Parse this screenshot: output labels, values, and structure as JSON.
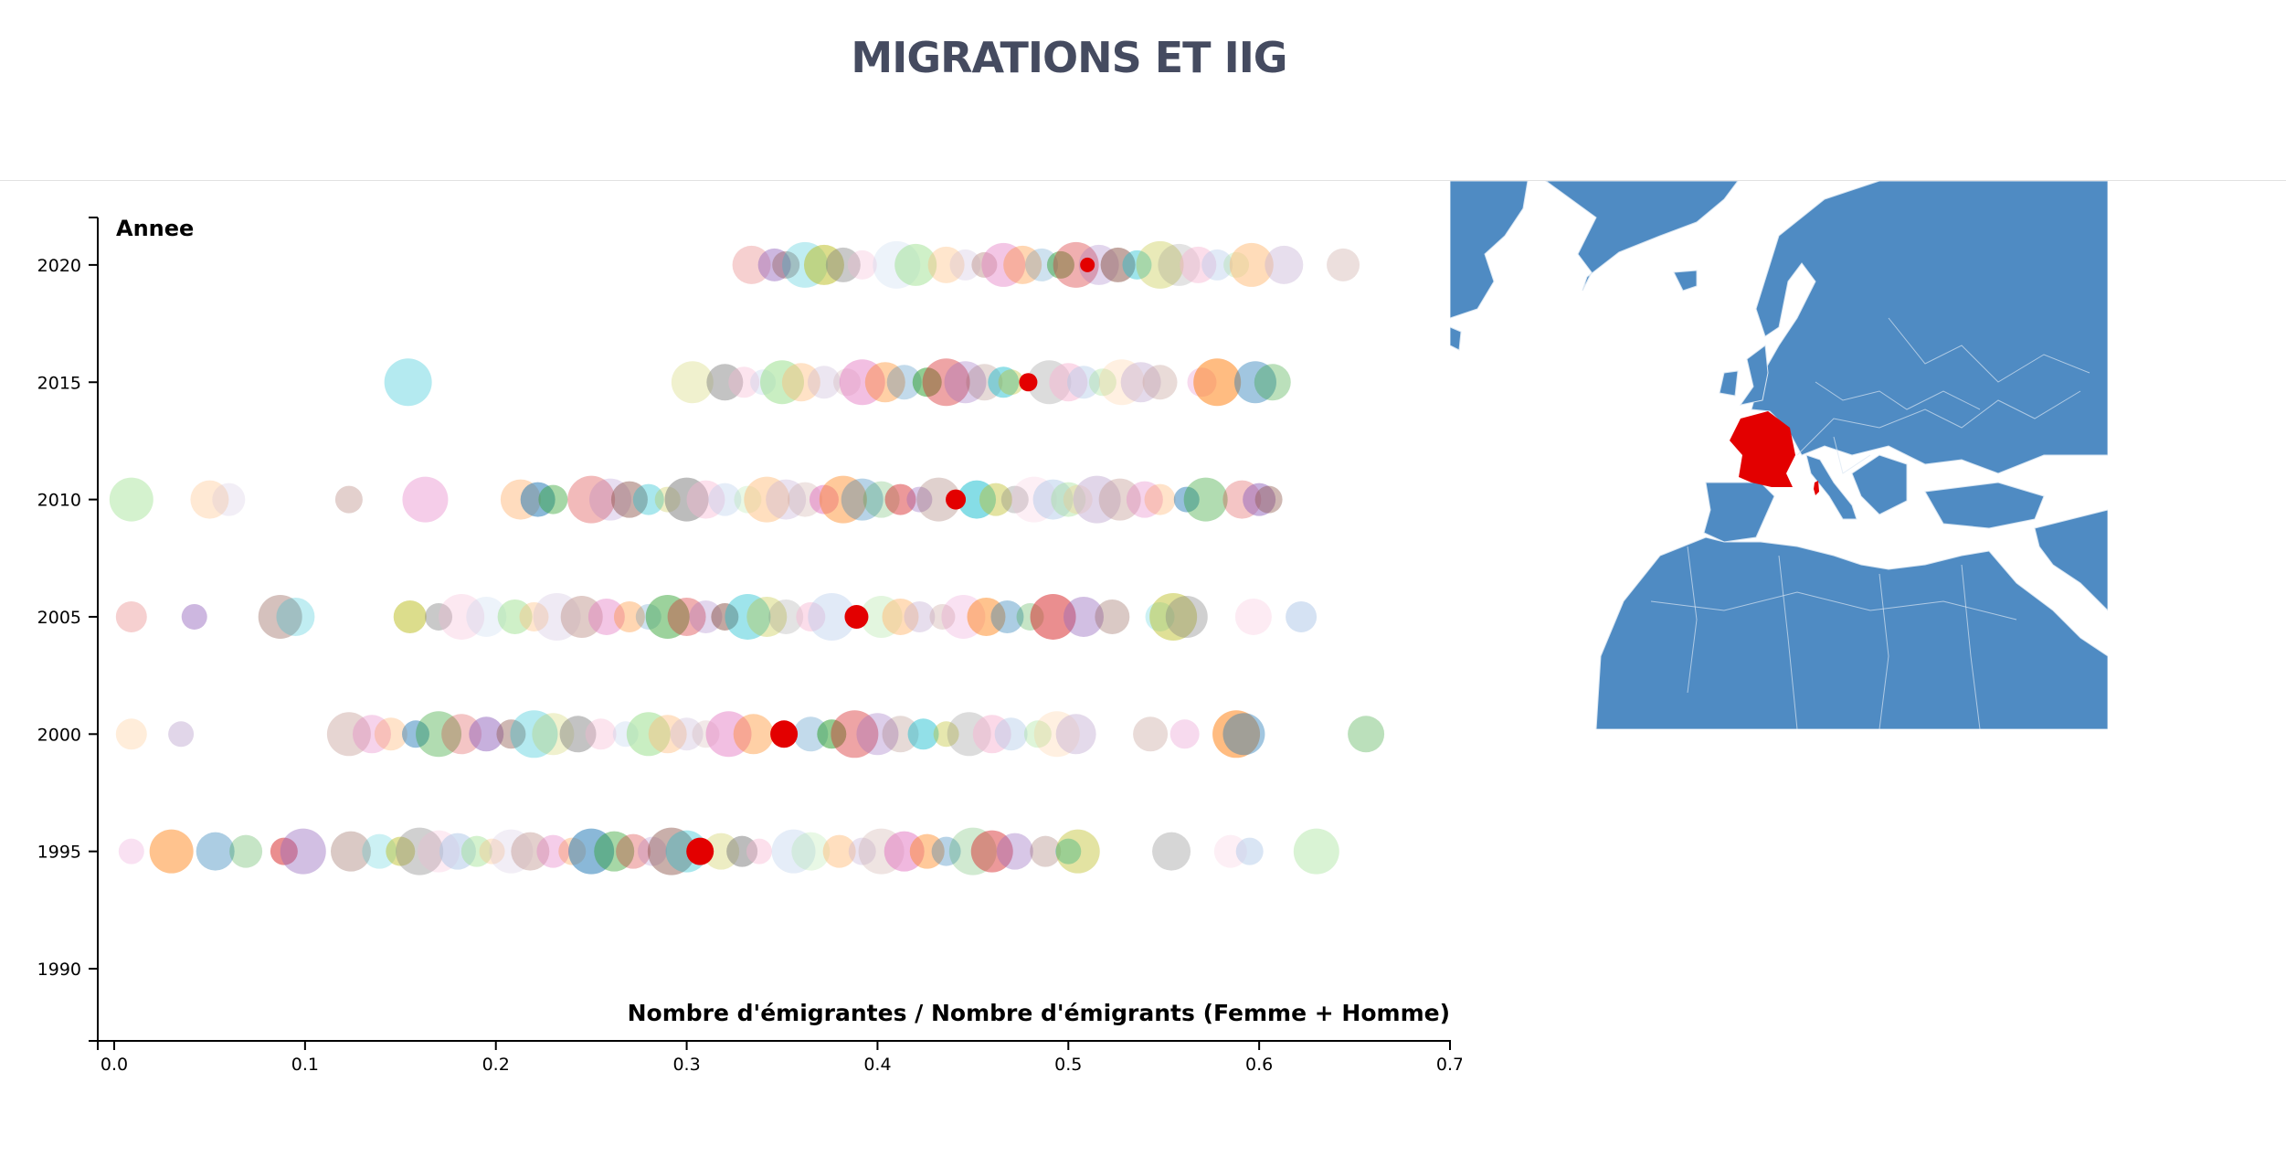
{
  "title": "MIGRATIONS ET IIG",
  "colors": {
    "title": "#454b60",
    "highlight": "#e30000",
    "map_land": "#4f8bc3",
    "map_border": "#d9e6f2",
    "map_highlight": "#e30000"
  },
  "map": {
    "highlighted_country": "France"
  },
  "chart_data": {
    "type": "scatter",
    "xlabel": "Nombre d'émigrantes / Nombre d'émigrants (Femme + Homme)",
    "ylabel": "Annee",
    "xlim": [
      0.0,
      0.7
    ],
    "ylim": [
      1987,
      2022
    ],
    "xticks": [
      "0.0",
      "0.1",
      "0.2",
      "0.3",
      "0.4",
      "0.5",
      "0.6",
      "0.7"
    ],
    "yticks": [
      "1990",
      "1995",
      "2000",
      "2005",
      "2010",
      "2015",
      "2020"
    ],
    "grid": false,
    "highlighted_country": "France",
    "highlighted_points": [
      {
        "year": 1995,
        "x": 0.307
      },
      {
        "year": 2000,
        "x": 0.351
      },
      {
        "year": 2005,
        "x": 0.389
      },
      {
        "year": 2010,
        "x": 0.441
      },
      {
        "year": 2015,
        "x": 0.479
      },
      {
        "year": 2020,
        "x": 0.51
      }
    ],
    "other_points": [
      {
        "year": 1995,
        "x": [
          0.009,
          0.03,
          0.053,
          0.069,
          0.089,
          0.099,
          0.124,
          0.139,
          0.15,
          0.16,
          0.17,
          0.18,
          0.19,
          0.198,
          0.208,
          0.218,
          0.23,
          0.24,
          0.25,
          0.262,
          0.272,
          0.282,
          0.292,
          0.3,
          0.318,
          0.329,
          0.338,
          0.356,
          0.365,
          0.38,
          0.392,
          0.402,
          0.414,
          0.426,
          0.436,
          0.45,
          0.46,
          0.472,
          0.488,
          0.5,
          0.505,
          0.554,
          0.585,
          0.595,
          0.63
        ]
      },
      {
        "year": 2000,
        "x": [
          0.009,
          0.035,
          0.123,
          0.135,
          0.145,
          0.158,
          0.17,
          0.182,
          0.195,
          0.208,
          0.22,
          0.23,
          0.243,
          0.255,
          0.268,
          0.28,
          0.29,
          0.3,
          0.31,
          0.322,
          0.335,
          0.365,
          0.376,
          0.388,
          0.4,
          0.412,
          0.424,
          0.436,
          0.448,
          0.46,
          0.47,
          0.484,
          0.494,
          0.504,
          0.543,
          0.561,
          0.588,
          0.592,
          0.656
        ]
      },
      {
        "year": 2005,
        "x": [
          0.009,
          0.042,
          0.087,
          0.095,
          0.155,
          0.17,
          0.182,
          0.195,
          0.21,
          0.22,
          0.232,
          0.245,
          0.258,
          0.27,
          0.28,
          0.29,
          0.3,
          0.31,
          0.32,
          0.332,
          0.342,
          0.352,
          0.365,
          0.376,
          0.402,
          0.412,
          0.422,
          0.434,
          0.445,
          0.457,
          0.468,
          0.48,
          0.492,
          0.508,
          0.523,
          0.548,
          0.555,
          0.562,
          0.597,
          0.622
        ]
      },
      {
        "year": 2010,
        "x": [
          0.009,
          0.05,
          0.06,
          0.123,
          0.163,
          0.213,
          0.222,
          0.23,
          0.25,
          0.26,
          0.27,
          0.28,
          0.29,
          0.3,
          0.31,
          0.32,
          0.332,
          0.342,
          0.352,
          0.362,
          0.372,
          0.382,
          0.392,
          0.402,
          0.412,
          0.422,
          0.432,
          0.452,
          0.462,
          0.472,
          0.482,
          0.492,
          0.5,
          0.505,
          0.515,
          0.527,
          0.54,
          0.548,
          0.562,
          0.572,
          0.591,
          0.6,
          0.605
        ]
      },
      {
        "year": 2015,
        "x": [
          0.154,
          0.303,
          0.32,
          0.33,
          0.34,
          0.35,
          0.36,
          0.372,
          0.384,
          0.392,
          0.404,
          0.414,
          0.426,
          0.436,
          0.446,
          0.456,
          0.466,
          0.47,
          0.49,
          0.5,
          0.508,
          0.518,
          0.528,
          0.538,
          0.548,
          0.57,
          0.578,
          0.598,
          0.607
        ]
      },
      {
        "year": 2020,
        "x": [
          0.334,
          0.346,
          0.352,
          0.362,
          0.372,
          0.382,
          0.392,
          0.41,
          0.42,
          0.436,
          0.446,
          0.456,
          0.466,
          0.476,
          0.486,
          0.496,
          0.504,
          0.516,
          0.526,
          0.536,
          0.548,
          0.558,
          0.568,
          0.578,
          0.588,
          0.596,
          0.613,
          0.644
        ]
      }
    ]
  }
}
